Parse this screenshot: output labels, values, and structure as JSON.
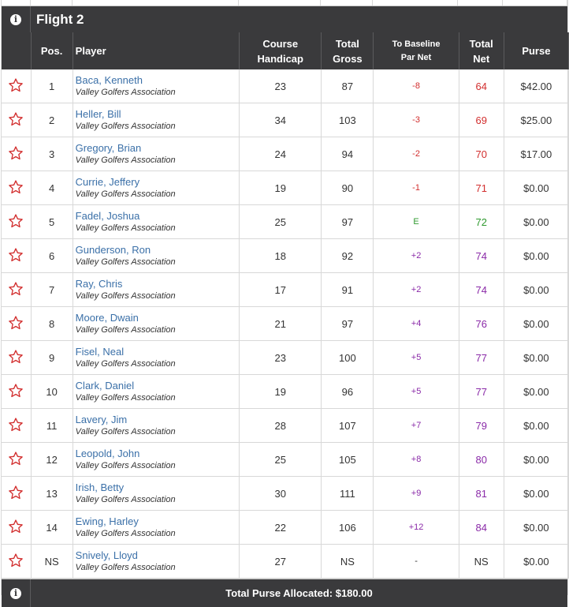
{
  "flight": {
    "title": "Flight 2"
  },
  "columns": {
    "pos": "Pos.",
    "player": "Player",
    "course_handicap_1": "Course",
    "course_handicap_2": "Handicap",
    "total_gross_1": "Total",
    "total_gross_2": "Gross",
    "to_baseline_1": "To Baseline",
    "to_baseline_2": "Par Net",
    "total_net_1": "Total",
    "total_net_2": "Net",
    "purse": "Purse"
  },
  "rows": [
    {
      "pos": "1",
      "name": "Baca, Kenneth",
      "assoc": "Valley Golfers Association",
      "handicap": "23",
      "gross": "87",
      "baseline": "-8",
      "net": "64",
      "purse": "$42.00",
      "tone": "neg"
    },
    {
      "pos": "2",
      "name": "Heller, Bill",
      "assoc": "Valley Golfers Association",
      "handicap": "34",
      "gross": "103",
      "baseline": "-3",
      "net": "69",
      "purse": "$25.00",
      "tone": "neg"
    },
    {
      "pos": "3",
      "name": "Gregory, Brian",
      "assoc": "Valley Golfers Association",
      "handicap": "24",
      "gross": "94",
      "baseline": "-2",
      "net": "70",
      "purse": "$17.00",
      "tone": "neg"
    },
    {
      "pos": "4",
      "name": "Currie, Jeffery",
      "assoc": "Valley Golfers Association",
      "handicap": "19",
      "gross": "90",
      "baseline": "-1",
      "net": "71",
      "purse": "$0.00",
      "tone": "neg"
    },
    {
      "pos": "5",
      "name": "Fadel, Joshua",
      "assoc": "Valley Golfers Association",
      "handicap": "25",
      "gross": "97",
      "baseline": "E",
      "net": "72",
      "purse": "$0.00",
      "tone": "even"
    },
    {
      "pos": "6",
      "name": "Gunderson, Ron",
      "assoc": "Valley Golfers Association",
      "handicap": "18",
      "gross": "92",
      "baseline": "+2",
      "net": "74",
      "purse": "$0.00",
      "tone": "pos"
    },
    {
      "pos": "7",
      "name": "Ray, Chris",
      "assoc": "Valley Golfers Association",
      "handicap": "17",
      "gross": "91",
      "baseline": "+2",
      "net": "74",
      "purse": "$0.00",
      "tone": "pos"
    },
    {
      "pos": "8",
      "name": "Moore, Dwain",
      "assoc": "Valley Golfers Association",
      "handicap": "21",
      "gross": "97",
      "baseline": "+4",
      "net": "76",
      "purse": "$0.00",
      "tone": "pos"
    },
    {
      "pos": "9",
      "name": "Fisel, Neal",
      "assoc": "Valley Golfers Association",
      "handicap": "23",
      "gross": "100",
      "baseline": "+5",
      "net": "77",
      "purse": "$0.00",
      "tone": "pos"
    },
    {
      "pos": "10",
      "name": "Clark, Daniel",
      "assoc": "Valley Golfers Association",
      "handicap": "19",
      "gross": "96",
      "baseline": "+5",
      "net": "77",
      "purse": "$0.00",
      "tone": "pos"
    },
    {
      "pos": "11",
      "name": "Lavery, Jim",
      "assoc": "Valley Golfers Association",
      "handicap": "28",
      "gross": "107",
      "baseline": "+7",
      "net": "79",
      "purse": "$0.00",
      "tone": "pos"
    },
    {
      "pos": "12",
      "name": "Leopold, John",
      "assoc": "Valley Golfers Association",
      "handicap": "25",
      "gross": "105",
      "baseline": "+8",
      "net": "80",
      "purse": "$0.00",
      "tone": "pos"
    },
    {
      "pos": "13",
      "name": "Irish, Betty",
      "assoc": "Valley Golfers Association",
      "handicap": "30",
      "gross": "111",
      "baseline": "+9",
      "net": "81",
      "purse": "$0.00",
      "tone": "pos"
    },
    {
      "pos": "14",
      "name": "Ewing, Harley",
      "assoc": "Valley Golfers Association",
      "handicap": "22",
      "gross": "106",
      "baseline": "+12",
      "net": "84",
      "purse": "$0.00",
      "tone": "pos"
    },
    {
      "pos": "NS",
      "name": "Snively, Lloyd",
      "assoc": "Valley Golfers Association",
      "handicap": "27",
      "gross": "NS",
      "baseline": "-",
      "net": "NS",
      "purse": "$0.00",
      "tone": "neutral"
    }
  ],
  "footer": {
    "total_purse": "Total Purse Allocated: $180.00"
  },
  "colors": {
    "header_bg": "#3a3a3c",
    "link": "#3b70a8",
    "negative": "#d22e2e",
    "even": "#2f9a2f",
    "positive": "#8a2aa8",
    "star": "#d22e2e"
  },
  "icons": {
    "info": "info-icon",
    "favorite": "star-outline-icon"
  }
}
